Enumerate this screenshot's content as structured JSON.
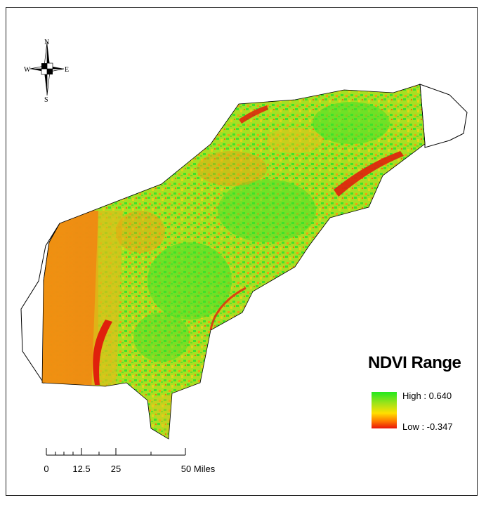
{
  "compass": {
    "north": "N",
    "south": "S",
    "east": "E",
    "west": "W"
  },
  "legend": {
    "title": "NDVI Range",
    "high_label": "High : 0.640",
    "low_label": "Low : -0.347",
    "high_color": "#22e81e",
    "mid_color": "#ffe000",
    "low_color": "#e8150b"
  },
  "scale_bar": {
    "labels": [
      "0",
      "12.5",
      "25",
      "50 Miles"
    ]
  },
  "colors": {
    "border": "#222222",
    "land_outline": "#000000",
    "vegetation_green": "#4fdc2a",
    "vegetation_yellow": "#d8e01e",
    "orange": "#f28a10",
    "red": "#e0200c"
  }
}
